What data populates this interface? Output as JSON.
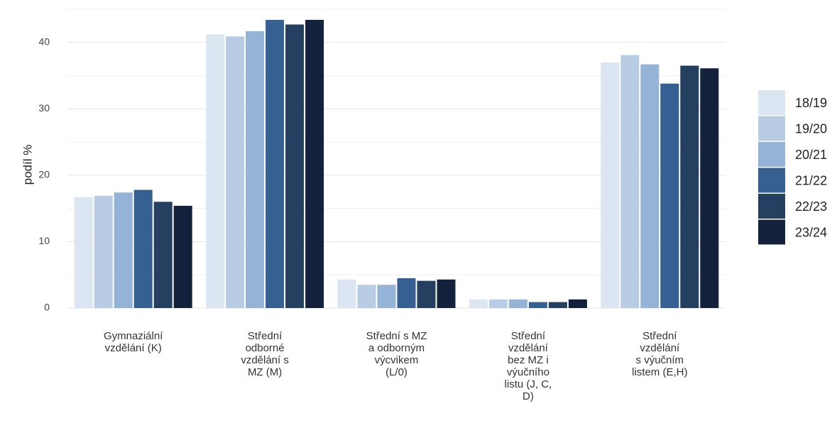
{
  "chart_data": {
    "type": "bar",
    "y_label": "podíl %",
    "categories": [
      [
        "Gymnaziální",
        "vzdělání (K)"
      ],
      [
        "Střední",
        "odborné",
        "vzdělání s",
        "MZ (M)"
      ],
      [
        "Střední s MZ",
        "a odborným",
        "výcvikem",
        "(L/0)"
      ],
      [
        "Střední",
        "vzdělání",
        "bez MZ i",
        "výučního",
        "listu (J, C,",
        "D)"
      ],
      [
        "Střední",
        "vzdělání",
        "s výučním",
        "listem (E,H)"
      ]
    ],
    "series": [
      {
        "name": "18/19",
        "color": "#dce6f2",
        "values": [
          16.7,
          41.2,
          4.3,
          1.3,
          37.0
        ]
      },
      {
        "name": "19/20",
        "color": "#b8cce4",
        "values": [
          16.9,
          40.9,
          3.5,
          1.3,
          38.1
        ]
      },
      {
        "name": "20/21",
        "color": "#95b3d7",
        "values": [
          17.4,
          41.7,
          3.5,
          1.3,
          36.7
        ]
      },
      {
        "name": "21/22",
        "color": "#366092",
        "values": [
          17.8,
          43.4,
          4.5,
          0.9,
          33.8
        ]
      },
      {
        "name": "22/23",
        "color": "#243f60",
        "values": [
          16.0,
          42.7,
          4.1,
          0.9,
          36.5
        ]
      },
      {
        "name": "23/24",
        "color": "#14213d",
        "values": [
          15.4,
          43.4,
          4.3,
          1.3,
          36.1
        ]
      }
    ],
    "ylim": [
      0,
      45
    ],
    "yticks": [
      0,
      10,
      20,
      30,
      40
    ],
    "minor_yticks": [
      5,
      15,
      25,
      35,
      45
    ],
    "grid": true,
    "legend": "right"
  }
}
